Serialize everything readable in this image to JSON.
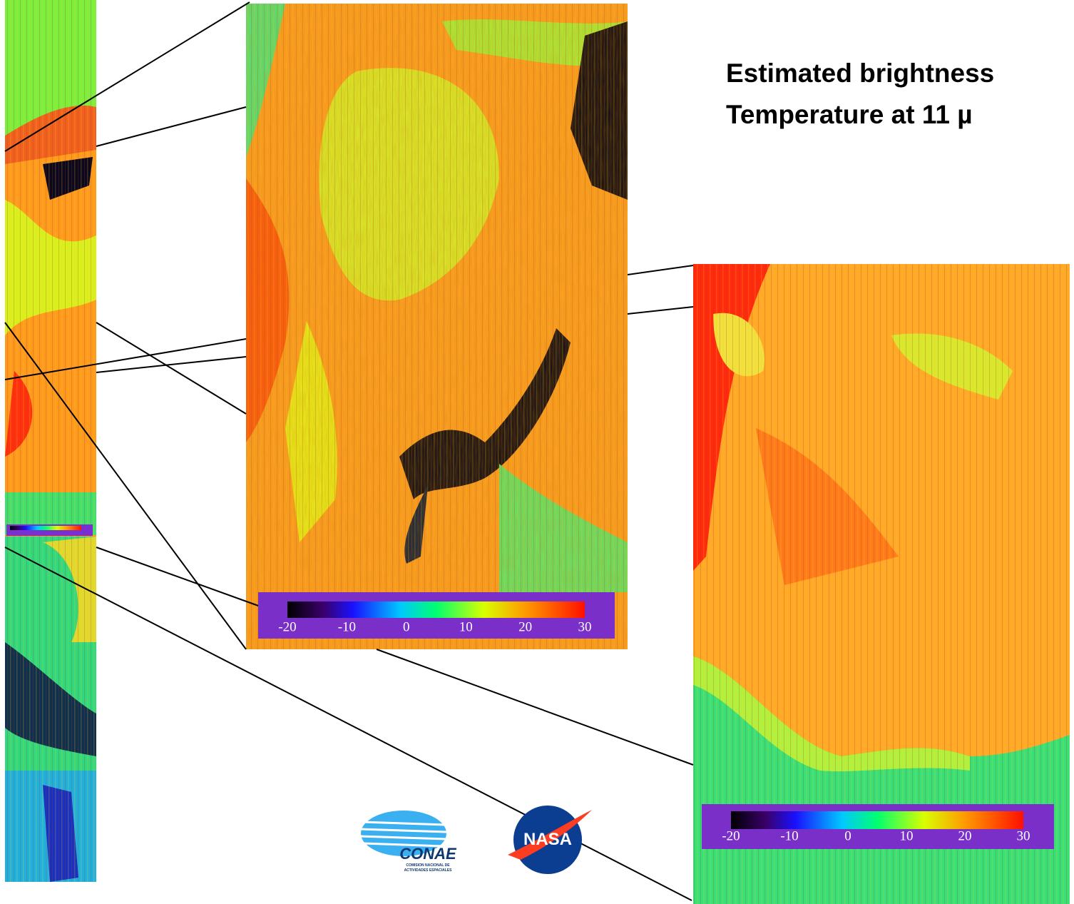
{
  "title_lines": [
    "Estimated brightness",
    "Temperature at 11  µ"
  ],
  "colorbars": [
    {
      "ticks": [
        -20,
        -10,
        0,
        10,
        20,
        30
      ]
    },
    {
      "ticks": [
        -20,
        -10,
        0,
        10,
        20,
        30
      ]
    }
  ],
  "logos": {
    "conae": "CONAE",
    "conae_subtitle": [
      "COMISION NACIONAL DE",
      "ACTIVIDADES ESPACIALES"
    ],
    "nasa": "NASA"
  }
}
